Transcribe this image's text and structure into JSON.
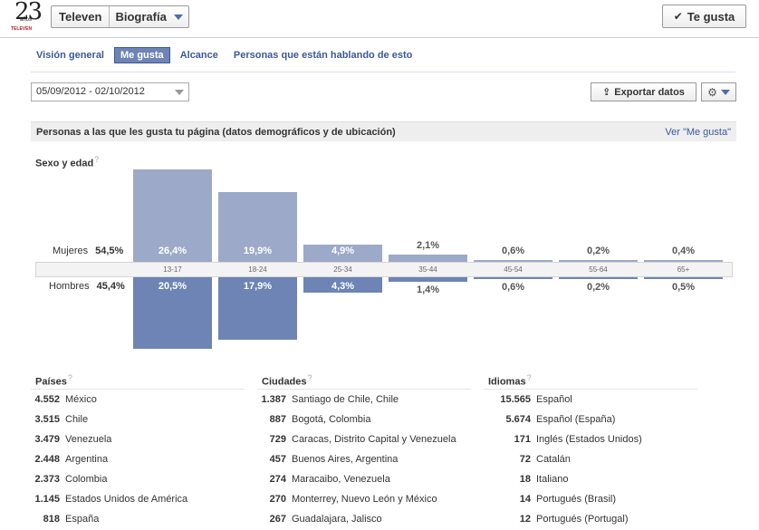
{
  "header": {
    "logo_number": "23",
    "logo_sub": "años",
    "logo_brand": "TELEVEN",
    "page_name": "Televen",
    "section_menu": "Biografía",
    "like_label": "Te gusta"
  },
  "tabs": [
    {
      "label": "Visión general",
      "active": false
    },
    {
      "label": "Me gusta",
      "active": true
    },
    {
      "label": "Alcance",
      "active": false
    },
    {
      "label": "Personas que están hablando de esto",
      "active": false
    }
  ],
  "toolbar": {
    "date_range": "05/09/2012 - 02/10/2012",
    "export_label": "Exportar datos"
  },
  "section": {
    "title": "Personas a las que les gusta tu página (datos demográficos y de ubicación)",
    "link": "Ver \"Me gusta\""
  },
  "gender_age": {
    "title": "Sexo y edad",
    "female_label": "Mujeres",
    "female_total": "54,5%",
    "male_label": "Hombres",
    "male_total": "45,4%"
  },
  "chart_data": {
    "type": "bar",
    "categories": [
      "13-17",
      "18-24",
      "25-34",
      "35-44",
      "45-54",
      "55-64",
      "65+"
    ],
    "series": [
      {
        "name": "Mujeres",
        "values": [
          26.4,
          19.9,
          4.9,
          2.1,
          0.6,
          0.2,
          0.4
        ],
        "labels": [
          "26,4%",
          "19,9%",
          "4,9%",
          "2,1%",
          "0,6%",
          "0,2%",
          "0,4%"
        ]
      },
      {
        "name": "Hombres",
        "values": [
          20.5,
          17.9,
          4.3,
          1.4,
          0.6,
          0.2,
          0.5
        ],
        "labels": [
          "20,5%",
          "17,9%",
          "4,3%",
          "1,4%",
          "0,6%",
          "0,2%",
          "0,5%"
        ]
      }
    ],
    "title": "Sexo y edad",
    "colors": {
      "female": "#9ca9c9",
      "male": "#6d84b4"
    }
  },
  "countries": {
    "title": "Países",
    "rows": [
      {
        "count": "4.552",
        "name": "México"
      },
      {
        "count": "3.515",
        "name": "Chile"
      },
      {
        "count": "3.479",
        "name": "Venezuela"
      },
      {
        "count": "2.448",
        "name": "Argentina"
      },
      {
        "count": "2.373",
        "name": "Colombia"
      },
      {
        "count": "1.145",
        "name": "Estados Unidos de América"
      },
      {
        "count": "818",
        "name": "España"
      }
    ]
  },
  "cities": {
    "title": "Ciudades",
    "rows": [
      {
        "count": "1.387",
        "name": "Santiago de Chile, Chile"
      },
      {
        "count": "887",
        "name": "Bogotá, Colombia"
      },
      {
        "count": "729",
        "name": "Caracas, Distrito Capital y Venezuela"
      },
      {
        "count": "457",
        "name": "Buenos Aires, Argentina"
      },
      {
        "count": "274",
        "name": "Maracaibo, Venezuela"
      },
      {
        "count": "270",
        "name": "Monterrey, Nuevo León y México"
      },
      {
        "count": "267",
        "name": "Guadalajara, Jalisco"
      }
    ]
  },
  "languages": {
    "title": "Idiomas",
    "rows": [
      {
        "count": "15.565",
        "name": "Español"
      },
      {
        "count": "5.674",
        "name": "Español (España)"
      },
      {
        "count": "171",
        "name": "Inglés (Estados Unidos)"
      },
      {
        "count": "72",
        "name": "Catalán"
      },
      {
        "count": "18",
        "name": "Italiano"
      },
      {
        "count": "14",
        "name": "Portugués (Brasil)"
      },
      {
        "count": "12",
        "name": "Portugués (Portugal)"
      }
    ]
  }
}
